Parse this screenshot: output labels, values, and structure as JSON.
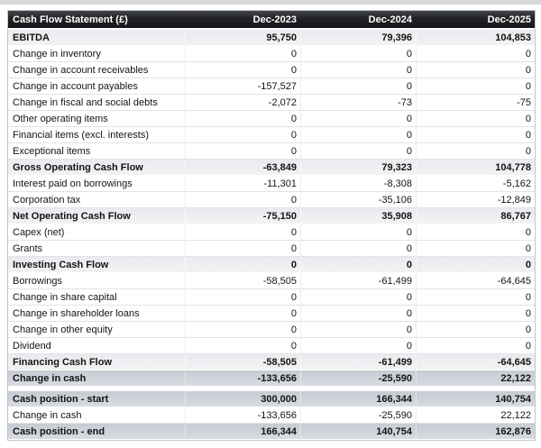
{
  "page": {
    "top_strip_color": "#d7d7d7",
    "background": "#ffffff"
  },
  "table": {
    "title": "Cash Flow Statement (£)",
    "currency_symbol": "£",
    "columns": [
      "Dec-2023",
      "Dec-2024",
      "Dec-2025"
    ],
    "colors": {
      "header_bg": "#1b1d20",
      "header_text": "#ffffff",
      "subtotal_row_bg": "#eef0f2",
      "total_row_bg": "#ccd1d8",
      "grid_line": "#e1e3e6",
      "body_text": "#141414"
    },
    "rows": [
      {
        "label": "EBITDA",
        "values": [
          "95,750",
          "79,396",
          "104,853"
        ],
        "style": "subtotal"
      },
      {
        "label": "Change in inventory",
        "values": [
          "0",
          "0",
          "0"
        ],
        "style": "normal"
      },
      {
        "label": "Change in account receivables",
        "values": [
          "0",
          "0",
          "0"
        ],
        "style": "normal"
      },
      {
        "label": "Change in account payables",
        "values": [
          "-157,527",
          "0",
          "0"
        ],
        "style": "normal"
      },
      {
        "label": "Change in fiscal and social debts",
        "values": [
          "-2,072",
          "-73",
          "-75"
        ],
        "style": "normal"
      },
      {
        "label": "Other operating items",
        "values": [
          "0",
          "0",
          "0"
        ],
        "style": "normal"
      },
      {
        "label": "Financial items (excl. interests)",
        "values": [
          "0",
          "0",
          "0"
        ],
        "style": "normal"
      },
      {
        "label": "Exceptional items",
        "values": [
          "0",
          "0",
          "0"
        ],
        "style": "normal"
      },
      {
        "label": "Gross Operating Cash Flow",
        "values": [
          "-63,849",
          "79,323",
          "104,778"
        ],
        "style": "subtotal"
      },
      {
        "label": "Interest paid on borrowings",
        "values": [
          "-11,301",
          "-8,308",
          "-5,162"
        ],
        "style": "normal"
      },
      {
        "label": "Corporation tax",
        "values": [
          "0",
          "-35,106",
          "-12,849"
        ],
        "style": "normal"
      },
      {
        "label": "Net Operating Cash Flow",
        "values": [
          "-75,150",
          "35,908",
          "86,767"
        ],
        "style": "subtotal"
      },
      {
        "label": "Capex (net)",
        "values": [
          "0",
          "0",
          "0"
        ],
        "style": "normal"
      },
      {
        "label": "Grants",
        "values": [
          "0",
          "0",
          "0"
        ],
        "style": "normal"
      },
      {
        "label": "Investing Cash Flow",
        "values": [
          "0",
          "0",
          "0"
        ],
        "style": "subtotal"
      },
      {
        "label": "Borrowings",
        "values": [
          "-58,505",
          "-61,499",
          "-64,645"
        ],
        "style": "normal"
      },
      {
        "label": "Change in share capital",
        "values": [
          "0",
          "0",
          "0"
        ],
        "style": "normal"
      },
      {
        "label": "Change in shareholder loans",
        "values": [
          "0",
          "0",
          "0"
        ],
        "style": "normal"
      },
      {
        "label": "Change in other equity",
        "values": [
          "0",
          "0",
          "0"
        ],
        "style": "normal"
      },
      {
        "label": "Dividend",
        "values": [
          "0",
          "0",
          "0"
        ],
        "style": "normal"
      },
      {
        "label": "Financing Cash Flow",
        "values": [
          "-58,505",
          "-61,499",
          "-64,645"
        ],
        "style": "subtotal"
      },
      {
        "label": "Change in cash",
        "values": [
          "-133,656",
          "-25,590",
          "22,122"
        ],
        "style": "total"
      },
      {
        "style": "separator"
      },
      {
        "label": "Cash position - start",
        "values": [
          "300,000",
          "166,344",
          "140,754"
        ],
        "style": "total"
      },
      {
        "label": "Change in cash",
        "values": [
          "-133,656",
          "-25,590",
          "22,122"
        ],
        "style": "normal"
      },
      {
        "label": "Cash position - end",
        "values": [
          "166,344",
          "140,754",
          "162,876"
        ],
        "style": "total"
      }
    ]
  }
}
